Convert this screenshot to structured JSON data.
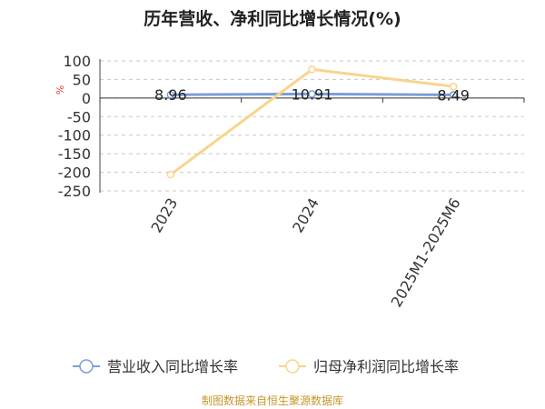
{
  "chart_data": {
    "type": "line",
    "title": "历年营收、净利同比增长情况(%)",
    "ylabel": "%",
    "categories": [
      "2023",
      "2024",
      "2025M1-2025M6"
    ],
    "yticks": [
      100,
      50,
      0,
      -50,
      -100,
      -150,
      -200,
      -250
    ],
    "ylim": [
      -250,
      100
    ],
    "grid": true,
    "legend_position": "bottom",
    "series": [
      {
        "name": "营业收入同比增长率",
        "values": [
          8.96,
          10.91,
          8.49
        ],
        "labels": [
          "8.96",
          "10.91",
          "8.49"
        ],
        "color": "#7b9fd6"
      },
      {
        "name": "归母净利润同比增长率",
        "values": [
          -206,
          77,
          31
        ],
        "color": "#f9d48c"
      }
    ]
  },
  "source": "制图数据来自恒生聚源数据库"
}
